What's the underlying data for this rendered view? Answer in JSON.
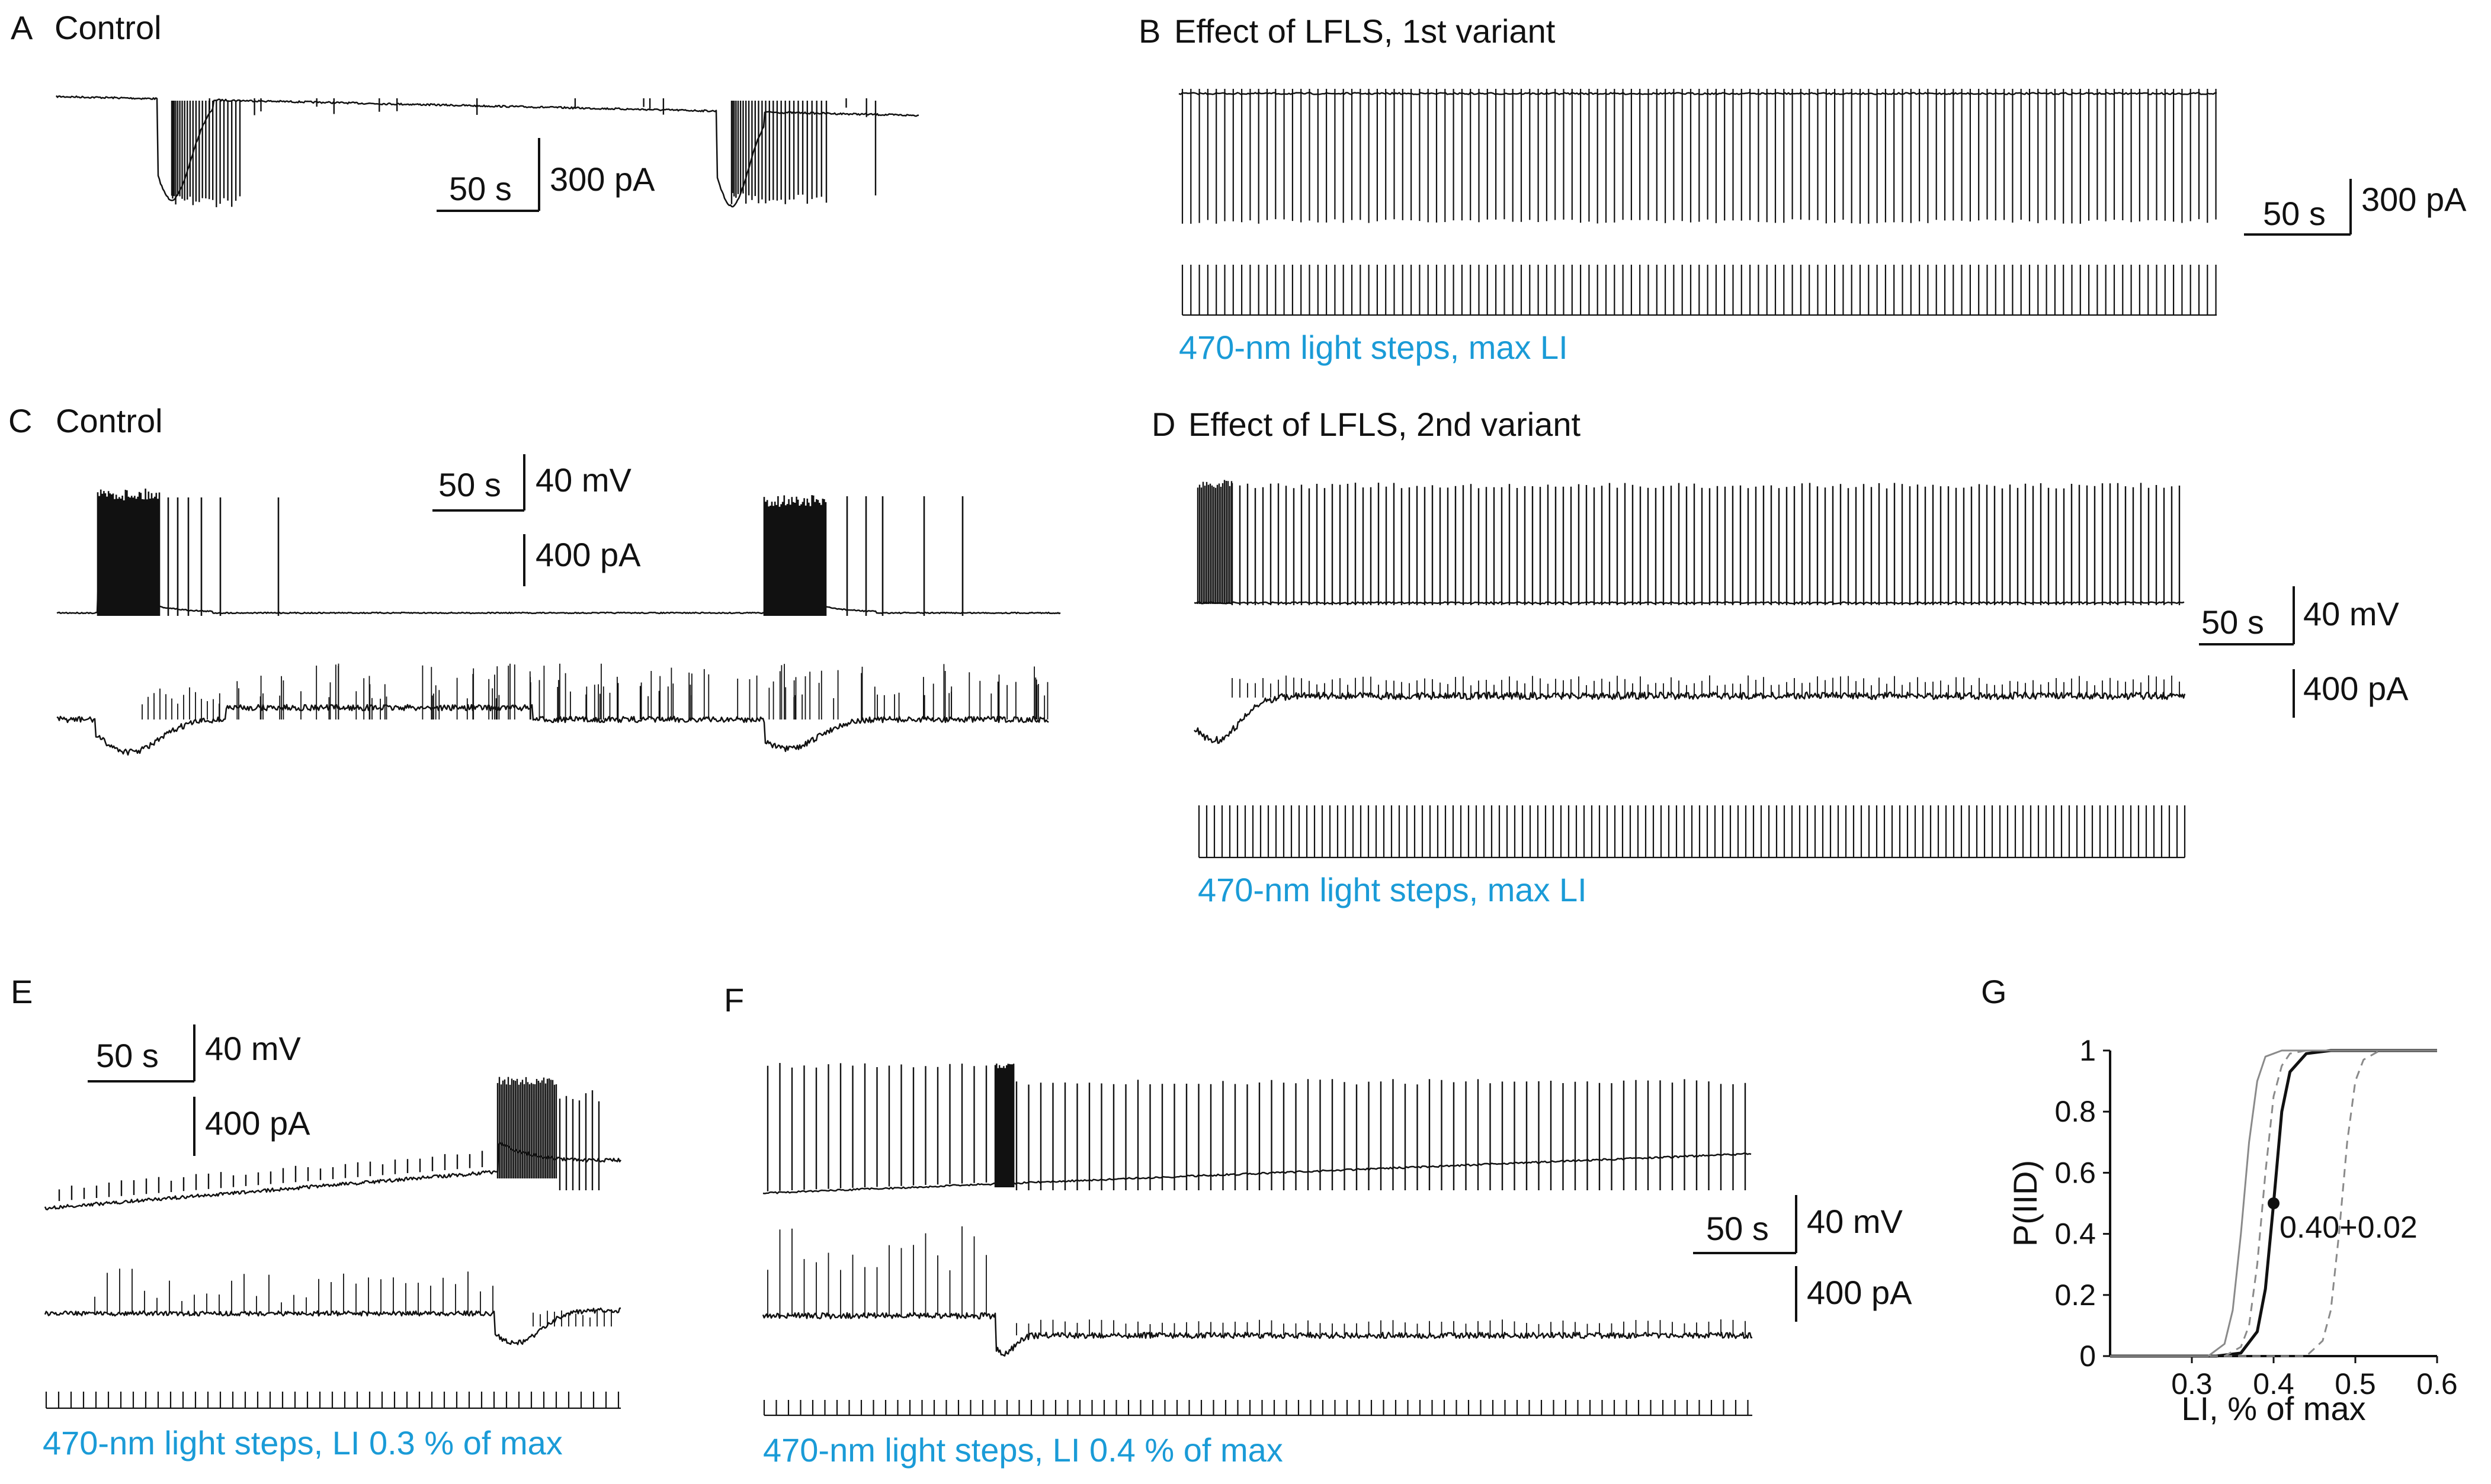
{
  "colors": {
    "trace": "#111111",
    "caption": "#1a9bd7",
    "gray": "#8a8a8a"
  },
  "panels": {
    "A": {
      "letter": "A",
      "title": "Control",
      "scale_time": "50 s",
      "scale_amp": "300 pA"
    },
    "B": {
      "letter": "B",
      "title": "Effect of LFLS, 1st variant",
      "scale_time": "50 s",
      "scale_amp": "300 pA",
      "caption": "470-nm light steps, max LI"
    },
    "C": {
      "letter": "C",
      "title": "Control",
      "scale_time": "50 s",
      "scale_volt": "40 mV",
      "scale_amp": "400 pA"
    },
    "D": {
      "letter": "D",
      "title": "Effect of LFLS, 2nd variant",
      "scale_time": "50 s",
      "scale_volt": "40 mV",
      "scale_amp": "400 pA",
      "caption": "470-nm light steps, max LI"
    },
    "E": {
      "letter": "E",
      "scale_time": "50 s",
      "scale_volt": "40 mV",
      "scale_amp": "400 pA",
      "caption": "470-nm light steps, LI 0.3 % of max"
    },
    "F": {
      "letter": "F",
      "scale_time": "50 s",
      "scale_volt": "40 mV",
      "scale_amp": "400 pA",
      "caption": "470-nm light steps, LI 0.4 % of max"
    },
    "G": {
      "letter": "G"
    }
  },
  "chart_data": {
    "type": "line",
    "xlabel": "LI, % of max",
    "ylabel": "P(IID)",
    "xlim": [
      0.2,
      0.6
    ],
    "ylim": [
      0,
      1
    ],
    "xticks": [
      "0.3",
      "0.4",
      "0.5",
      "0.6"
    ],
    "yticks": [
      "0",
      "0.2",
      "0.4",
      "0.6",
      "0.8",
      "1"
    ],
    "annotation": {
      "text": "0.40+0.02",
      "x": 0.4,
      "y": 0.5
    },
    "series": [
      {
        "style": "solid-black",
        "x": [
          0.2,
          0.33,
          0.36,
          0.38,
          0.39,
          0.4,
          0.41,
          0.42,
          0.44,
          0.47,
          0.6
        ],
        "y": [
          0,
          0,
          0.01,
          0.08,
          0.22,
          0.5,
          0.8,
          0.93,
          0.99,
          1,
          1
        ]
      },
      {
        "style": "solid-gray",
        "x": [
          0.2,
          0.32,
          0.34,
          0.35,
          0.36,
          0.37,
          0.38,
          0.39,
          0.41,
          0.6
        ],
        "y": [
          0,
          0,
          0.04,
          0.15,
          0.4,
          0.7,
          0.9,
          0.98,
          1,
          1
        ]
      },
      {
        "style": "dashed-gray",
        "x": [
          0.2,
          0.34,
          0.36,
          0.37,
          0.38,
          0.39,
          0.4,
          0.41,
          0.42,
          0.44,
          0.6
        ],
        "y": [
          0,
          0,
          0.03,
          0.1,
          0.3,
          0.6,
          0.85,
          0.95,
          0.99,
          1,
          1
        ]
      },
      {
        "style": "dashed-gray",
        "x": [
          0.2,
          0.44,
          0.46,
          0.47,
          0.48,
          0.49,
          0.5,
          0.51,
          0.53,
          0.6
        ],
        "y": [
          0,
          0,
          0.05,
          0.15,
          0.4,
          0.7,
          0.9,
          0.97,
          1,
          1
        ]
      }
    ]
  }
}
